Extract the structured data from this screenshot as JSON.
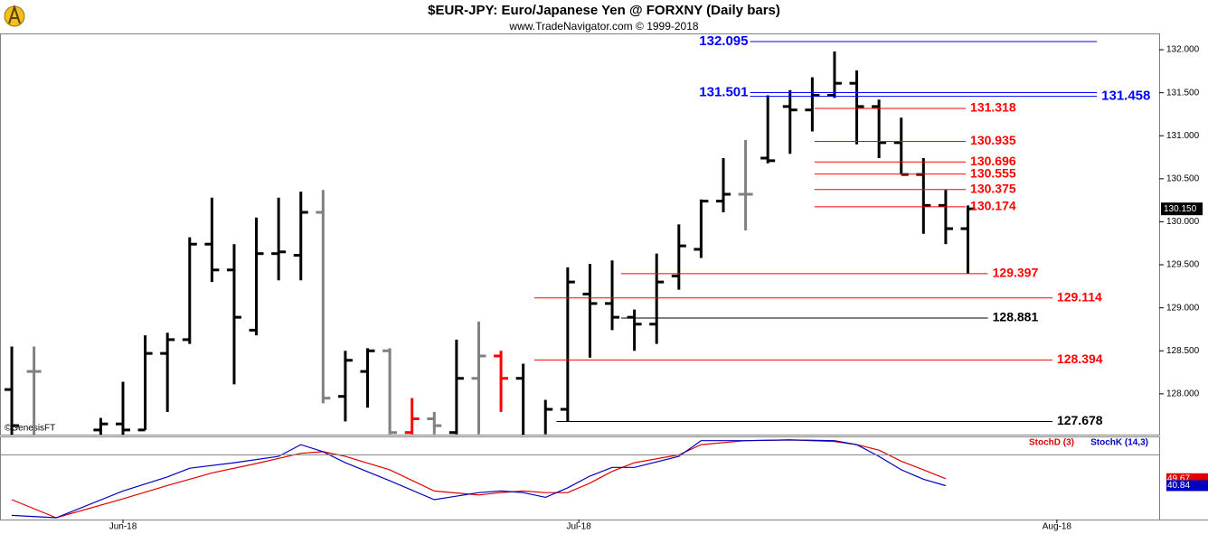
{
  "chart_data": {
    "type": "ohlc",
    "title": "$EUR-JPY:  Euro/Japanese Yen @ FORXNY  (Daily bars)",
    "subtitle": "www.TradeNavigator.com © 1999-2018",
    "credit": "©GenesisFT",
    "ylim": [
      127.526,
      132.179
    ],
    "yticks": [
      {
        "value": 128,
        "label": "128.000"
      },
      {
        "value": 128.5,
        "label": "128.500"
      },
      {
        "value": 129,
        "label": "129.000"
      },
      {
        "value": 129.5,
        "label": "129.500"
      },
      {
        "value": 130,
        "label": "130.000"
      },
      {
        "value": 130.5,
        "label": "130.500"
      },
      {
        "value": 131,
        "label": "131.000"
      },
      {
        "value": 131.5,
        "label": "131.500"
      },
      {
        "value": 132,
        "label": "132.000"
      }
    ],
    "xlim": [
      -0.53,
      51.6
    ],
    "xticks": [
      {
        "value": 5,
        "label": "Jun-18"
      },
      {
        "value": 25.5,
        "label": "Jul-18"
      },
      {
        "value": 47,
        "label": "Aug-18"
      }
    ],
    "last_price": {
      "value": 130.15,
      "label": "130.150"
    },
    "bars": [
      {
        "open": 128.05,
        "high": 128.55,
        "low": 127.42,
        "close": 127.63,
        "color": "#000000"
      },
      {
        "open": 128.26,
        "high": 128.55,
        "low": 127.42,
        "close": 128.26,
        "color": "#808080"
      },
      null,
      null,
      {
        "open": 127.58,
        "high": 127.72,
        "low": 127.42,
        "close": 127.65,
        "color": "#000000"
      },
      {
        "open": 127.65,
        "high": 128.14,
        "low": 127.42,
        "close": 127.58,
        "color": "#000000"
      },
      {
        "open": 127.58,
        "high": 128.68,
        "low": 127.58,
        "close": 128.47,
        "color": "#000000"
      },
      {
        "open": 128.47,
        "high": 128.71,
        "low": 127.79,
        "close": 128.63,
        "color": "#000000"
      },
      {
        "open": 128.63,
        "high": 129.82,
        "low": 128.58,
        "close": 129.74,
        "color": "#000000"
      },
      {
        "open": 129.74,
        "high": 130.28,
        "low": 129.3,
        "close": 129.44,
        "color": "#000000"
      },
      {
        "open": 129.44,
        "high": 129.74,
        "low": 128.11,
        "close": 128.89,
        "color": "#000000"
      },
      {
        "open": 128.74,
        "high": 130.05,
        "low": 128.68,
        "close": 129.63,
        "color": "#000000"
      },
      {
        "open": 129.63,
        "high": 130.28,
        "low": 129.32,
        "close": 129.65,
        "color": "#000000"
      },
      {
        "open": 129.61,
        "high": 130.35,
        "low": 129.32,
        "close": 130.11,
        "color": "#000000"
      },
      {
        "open": 130.11,
        "high": 130.37,
        "low": 127.89,
        "close": 127.95,
        "color": "#808080"
      },
      {
        "open": 127.97,
        "high": 128.5,
        "low": 127.68,
        "close": 128.39,
        "color": "#000000"
      },
      {
        "open": 128.26,
        "high": 128.53,
        "low": 127.84,
        "close": 128.5,
        "color": "#000000"
      },
      {
        "open": 128.5,
        "high": 128.53,
        "low": 127.53,
        "close": 127.55,
        "color": "#808080"
      },
      {
        "open": 127.55,
        "high": 127.95,
        "low": 127.53,
        "close": 127.71,
        "color": "#ff0000"
      },
      {
        "open": 127.71,
        "high": 127.79,
        "low": 127.53,
        "close": 127.63,
        "color": "#808080"
      },
      {
        "open": 127.55,
        "high": 128.63,
        "low": 127.53,
        "close": 128.18,
        "color": "#000000"
      },
      {
        "open": 128.18,
        "high": 128.84,
        "low": 127.53,
        "close": 128.44,
        "color": "#808080"
      },
      {
        "open": 128.44,
        "high": 128.5,
        "low": 127.79,
        "close": 128.18,
        "color": "#ff0000"
      },
      {
        "open": 128.18,
        "high": 128.35,
        "low": 127.51,
        "close": 127.51,
        "color": "#000000"
      },
      {
        "open": 127.51,
        "high": 127.93,
        "low": 127.53,
        "close": 127.82,
        "color": "#000000"
      },
      {
        "open": 127.82,
        "high": 129.47,
        "low": 127.68,
        "close": 129.3,
        "color": "#000000"
      },
      {
        "open": 129.16,
        "high": 129.51,
        "low": 128.42,
        "close": 129.05,
        "color": "#000000"
      },
      {
        "open": 129.05,
        "high": 129.55,
        "low": 128.74,
        "close": 128.89,
        "color": "#000000"
      },
      {
        "open": 128.89,
        "high": 128.98,
        "low": 128.5,
        "close": 128.81,
        "color": "#000000"
      },
      {
        "open": 128.81,
        "high": 129.63,
        "low": 128.58,
        "close": 129.3,
        "color": "#000000"
      },
      {
        "open": 129.37,
        "high": 129.97,
        "low": 129.21,
        "close": 129.72,
        "color": "#000000"
      },
      {
        "open": 129.68,
        "high": 130.26,
        "low": 129.58,
        "close": 130.24,
        "color": "#000000"
      },
      {
        "open": 130.24,
        "high": 130.74,
        "low": 130.11,
        "close": 130.32,
        "color": "#000000"
      },
      {
        "open": 130.32,
        "high": 130.95,
        "low": 129.9,
        "close": 130.32,
        "color": "#808080"
      },
      {
        "open": 130.74,
        "high": 131.47,
        "low": 130.68,
        "close": 130.71,
        "color": "#000000"
      },
      {
        "open": 131.34,
        "high": 131.53,
        "low": 130.79,
        "close": 131.3,
        "color": "#000000"
      },
      {
        "open": 131.3,
        "high": 131.68,
        "low": 131.05,
        "close": 131.47,
        "color": "#000000"
      },
      {
        "open": 131.47,
        "high": 131.98,
        "low": 131.44,
        "close": 131.61,
        "color": "#000000"
      },
      {
        "open": 131.61,
        "high": 131.76,
        "low": 130.9,
        "close": 131.34,
        "color": "#000000"
      },
      {
        "open": 131.34,
        "high": 131.42,
        "low": 130.74,
        "close": 130.92,
        "color": "#000000"
      },
      {
        "open": 130.92,
        "high": 131.21,
        "low": 130.55,
        "close": 130.55,
        "color": "#000000"
      },
      {
        "open": 130.55,
        "high": 130.74,
        "low": 129.86,
        "close": 130.19,
        "color": "#000000"
      },
      {
        "open": 130.19,
        "high": 130.37,
        "low": 129.74,
        "close": 129.92,
        "color": "#000000"
      },
      {
        "open": 129.92,
        "high": 130.19,
        "low": 129.4,
        "close": 130.15,
        "color": "#000000"
      }
    ],
    "levels": [
      {
        "value": 132.095,
        "label": "132.095",
        "color": "#0000ff",
        "from": 33.2,
        "to": 48.8,
        "side": "left"
      },
      {
        "value": 131.501,
        "label": "131.501",
        "color": "#0000ff",
        "from": 33.2,
        "to": 48.8,
        "side": "left"
      },
      {
        "value": 131.458,
        "label": "131.458",
        "color": "#0000ff",
        "from": 33.2,
        "to": 48.8,
        "side": "right"
      },
      {
        "value": 131.318,
        "label": "131.318",
        "color": "#ff0000",
        "from": 36.1,
        "to": 42.9,
        "side": "right"
      },
      {
        "value": 130.935,
        "label": "130.935",
        "color": "#ff0000",
        "from": 36.1,
        "to": 42.9,
        "side": "right"
      },
      {
        "value": 130.696,
        "label": "130.696",
        "color": "#ff0000",
        "from": 36.1,
        "to": 42.9,
        "side": "right"
      },
      {
        "value": 130.555,
        "label": "130.555",
        "color": "#ff0000",
        "from": 36.1,
        "to": 42.9,
        "side": "right"
      },
      {
        "value": 130.375,
        "label": "130.375",
        "color": "#ff0000",
        "from": 36.1,
        "to": 42.9,
        "side": "right"
      },
      {
        "value": 130.174,
        "label": "130.174",
        "color": "#ff0000",
        "from": 36.1,
        "to": 42.9,
        "side": "right"
      },
      {
        "value": 129.397,
        "label": "129.397",
        "color": "#ff0000",
        "from": 27.4,
        "to": 43.9,
        "side": "right"
      },
      {
        "value": 129.114,
        "label": "129.114",
        "color": "#ff0000",
        "from": 23.5,
        "to": 46.8,
        "side": "right"
      },
      {
        "value": 128.881,
        "label": "128.881",
        "color": "#000000",
        "from": 27.4,
        "to": 43.9,
        "side": "right"
      },
      {
        "value": 128.394,
        "label": "128.394",
        "color": "#ff0000",
        "from": 23.5,
        "to": 46.8,
        "side": "right"
      },
      {
        "value": 127.678,
        "label": "127.678",
        "color": "#000000",
        "from": 24.5,
        "to": 46.8,
        "side": "right"
      }
    ],
    "stoch": {
      "ylim": [
        0,
        100
      ],
      "grid_value": 80,
      "series": [
        {
          "name": "StochD (3)",
          "color": "#e00000",
          "last_label": "49.67",
          "x": [
            0,
            2,
            5,
            7,
            9,
            11,
            13,
            14,
            15,
            17,
            19,
            21,
            22,
            23,
            24,
            25,
            26,
            27,
            28,
            30,
            31,
            33,
            35,
            37,
            38,
            39,
            40,
            41,
            42
          ],
          "values": [
            23,
            0,
            24,
            41,
            57,
            69,
            82,
            84,
            78,
            61,
            34,
            29,
            32,
            34,
            32,
            32,
            44,
            59,
            70,
            80,
            93,
            98,
            99,
            97,
            93,
            86,
            72,
            61,
            49.67
          ]
        },
        {
          "name": "StochK (14,3)",
          "color": "#0000c0",
          "last_label": "40.84",
          "x": [
            0,
            2,
            5,
            7,
            8,
            10,
            12,
            13,
            14,
            15,
            17,
            19,
            21,
            22,
            23,
            24,
            25,
            26,
            27,
            28,
            30,
            31,
            33,
            35,
            37,
            38,
            39,
            40,
            41,
            42
          ],
          "values": [
            3,
            0,
            34,
            52,
            63,
            70,
            78,
            93,
            84,
            70,
            47,
            23,
            32,
            34,
            32,
            26,
            38,
            53,
            64,
            64,
            78,
            98,
            98,
            99,
            98,
            93,
            78,
            61,
            49,
            40.84
          ]
        }
      ]
    }
  }
}
